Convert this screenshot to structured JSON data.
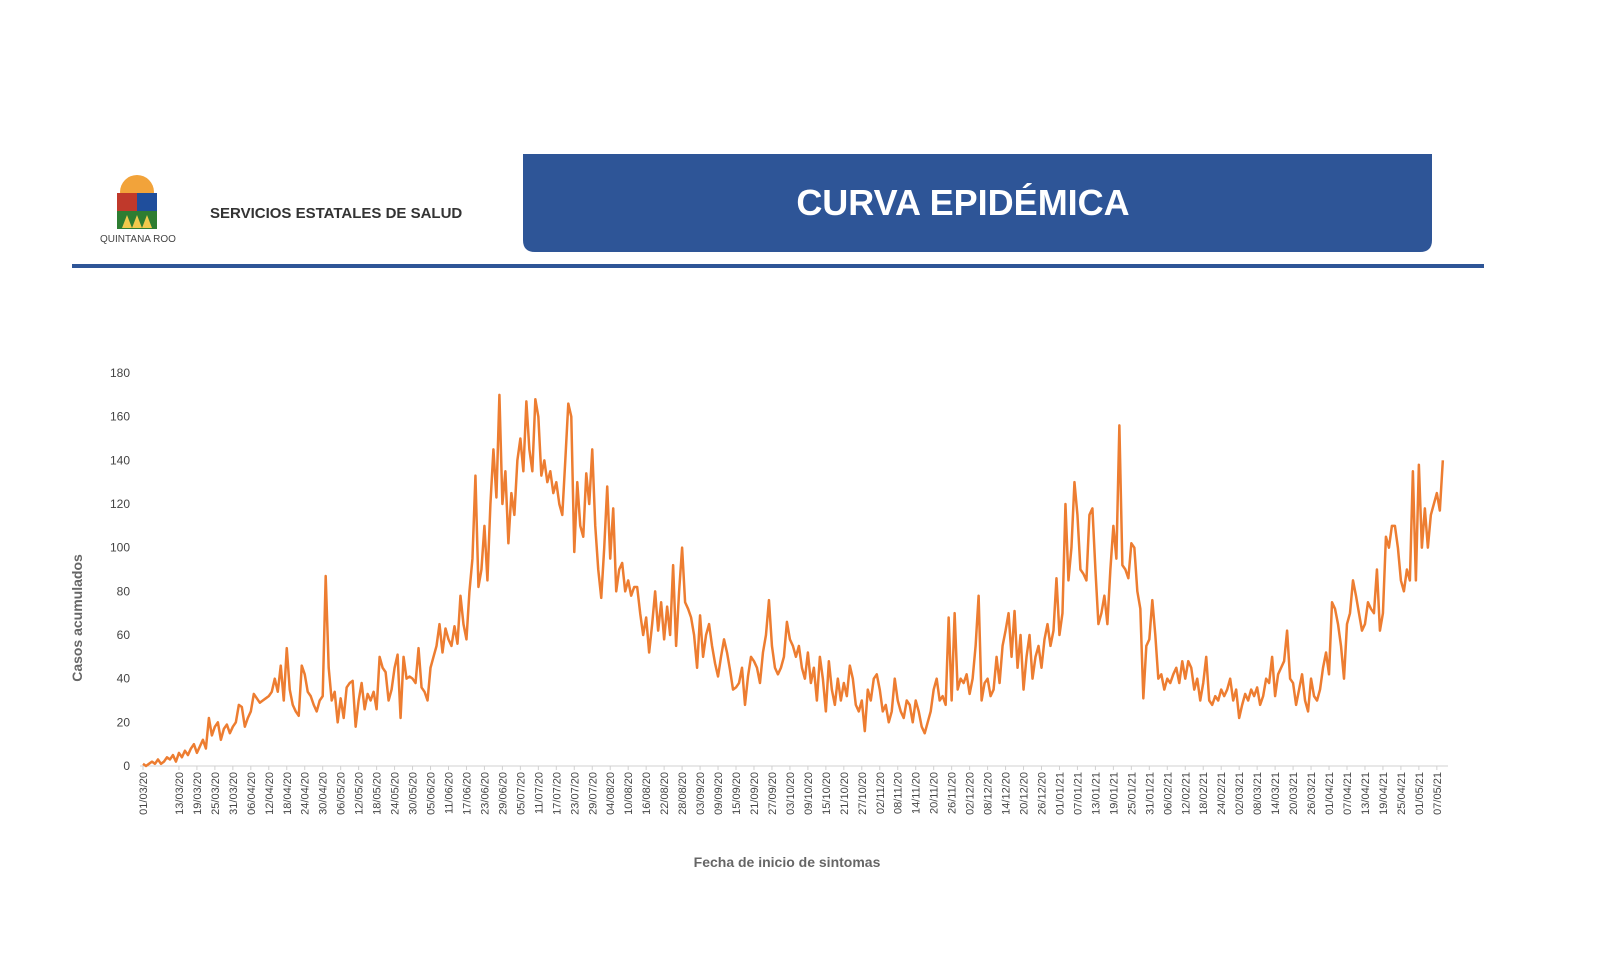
{
  "header": {
    "organization": "SERVICIOS ESTATALES DE SALUD",
    "logo_text": "QUINTANA ROO",
    "banner": "CURVA EPIDÉMICA"
  },
  "chart_data": {
    "type": "line",
    "x_label": "Fecha de inicio de sintomas",
    "y_label": "Casos acumulados",
    "color": "#ed7d31",
    "ylim": [
      0,
      180
    ],
    "yticks": [
      0,
      20,
      40,
      60,
      80,
      100,
      120,
      140,
      160,
      180
    ],
    "categories": [
      "01/03/20",
      null,
      null,
      null,
      null,
      null,
      null,
      null,
      null,
      null,
      null,
      null,
      "13/03/20",
      null,
      null,
      null,
      null,
      null,
      "19/03/20",
      null,
      null,
      null,
      null,
      null,
      "25/03/20",
      null,
      null,
      null,
      null,
      null,
      "31/03/20",
      null,
      null,
      null,
      null,
      null,
      "06/04/20",
      null,
      null,
      null,
      null,
      null,
      "12/04/20",
      null,
      null,
      null,
      null,
      null,
      "18/04/20",
      null,
      null,
      null,
      null,
      null,
      "24/04/20",
      null,
      null,
      null,
      null,
      null,
      "30/04/20",
      null,
      null,
      null,
      null,
      null,
      "06/05/20",
      null,
      null,
      null,
      null,
      null,
      "12/05/20",
      null,
      null,
      null,
      null,
      null,
      "18/05/20",
      null,
      null,
      null,
      null,
      null,
      "24/05/20",
      null,
      null,
      null,
      null,
      null,
      "30/05/20",
      null,
      null,
      null,
      null,
      null,
      "05/06/20",
      null,
      null,
      null,
      null,
      null,
      "11/06/20",
      null,
      null,
      null,
      null,
      null,
      "17/06/20",
      null,
      null,
      null,
      null,
      null,
      "23/06/20",
      null,
      null,
      null,
      null,
      null,
      "29/06/20",
      null,
      null,
      null,
      null,
      null,
      "05/07/20",
      null,
      null,
      null,
      null,
      null,
      "11/07/20",
      null,
      null,
      null,
      null,
      null,
      "17/07/20",
      null,
      null,
      null,
      null,
      null,
      "23/07/20",
      null,
      null,
      null,
      null,
      null,
      "29/07/20",
      null,
      null,
      null,
      null,
      null,
      "04/08/20",
      null,
      null,
      null,
      null,
      null,
      "10/08/20",
      null,
      null,
      null,
      null,
      null,
      "16/08/20",
      null,
      null,
      null,
      null,
      null,
      "22/08/20",
      null,
      null,
      null,
      null,
      null,
      "28/08/20",
      null,
      null,
      null,
      null,
      null,
      "03/09/20",
      null,
      null,
      null,
      null,
      null,
      "09/09/20",
      null,
      null,
      null,
      null,
      null,
      "15/09/20",
      null,
      null,
      null,
      null,
      null,
      "21/09/20",
      null,
      null,
      null,
      null,
      null,
      "27/09/20",
      null,
      null,
      null,
      null,
      null,
      "03/10/20",
      null,
      null,
      null,
      null,
      null,
      "09/10/20",
      null,
      null,
      null,
      null,
      null,
      "15/10/20",
      null,
      null,
      null,
      null,
      null,
      "21/10/20",
      null,
      null,
      null,
      null,
      null,
      "27/10/20",
      null,
      null,
      null,
      null,
      null,
      "02/11/20",
      null,
      null,
      null,
      null,
      null,
      "08/11/20",
      null,
      null,
      null,
      null,
      null,
      "14/11/20",
      null,
      null,
      null,
      null,
      null,
      "20/11/20",
      null,
      null,
      null,
      null,
      null,
      "26/11/20",
      null,
      null,
      null,
      null,
      null,
      "02/12/20",
      null,
      null,
      null,
      null,
      null,
      "08/12/20",
      null,
      null,
      null,
      null,
      null,
      "14/12/20",
      null,
      null,
      null,
      null,
      null,
      "20/12/20",
      null,
      null,
      null,
      null,
      null,
      "26/12/20",
      null,
      null,
      null,
      null,
      null,
      "01/01/21",
      null,
      null,
      null,
      null,
      null,
      "07/01/21",
      null,
      null,
      null,
      null,
      null,
      "13/01/21",
      null,
      null,
      null,
      null,
      null,
      "19/01/21",
      null,
      null,
      null,
      null,
      null,
      "25/01/21",
      null,
      null,
      null,
      null,
      null,
      "31/01/21",
      null,
      null,
      null,
      null,
      null,
      "06/02/21",
      null,
      null,
      null,
      null,
      null,
      "12/02/21",
      null,
      null,
      null,
      null,
      null,
      "18/02/21",
      null,
      null,
      null,
      null,
      null,
      "24/02/21",
      null,
      null,
      null,
      null,
      null,
      "02/03/21",
      null,
      null,
      null,
      null,
      null,
      "08/03/21",
      null,
      null,
      null,
      null,
      null,
      "14/03/21",
      null,
      null,
      null,
      null,
      null,
      "20/03/21",
      null,
      null,
      null,
      null,
      null,
      "26/03/21",
      null,
      null,
      null,
      null,
      null,
      "01/04/21",
      null,
      null,
      null,
      null,
      null,
      "07/04/21",
      null,
      null,
      null,
      null,
      null,
      "13/04/21",
      null,
      null,
      null,
      null,
      null,
      "19/04/21",
      null,
      null,
      null,
      null,
      null,
      "25/04/21",
      null,
      null,
      null,
      null,
      null,
      "01/05/21",
      null,
      null,
      null,
      null,
      null,
      "07/05/21",
      null,
      null
    ],
    "values": [
      1,
      0,
      1,
      2,
      1,
      3,
      1,
      2,
      4,
      3,
      5,
      2,
      6,
      4,
      7,
      5,
      8,
      10,
      6,
      9,
      12,
      8,
      22,
      14,
      18,
      20,
      12,
      17,
      19,
      15,
      18,
      20,
      28,
      27,
      18,
      22,
      25,
      33,
      31,
      29,
      30,
      31,
      32,
      34,
      40,
      34,
      46,
      30,
      54,
      35,
      28,
      25,
      23,
      46,
      42,
      34,
      32,
      28,
      25,
      30,
      32,
      87,
      45,
      30,
      34,
      20,
      31,
      22,
      36,
      38,
      39,
      18,
      30,
      38,
      26,
      33,
      30,
      34,
      26,
      50,
      45,
      43,
      30,
      35,
      45,
      51,
      22,
      50,
      40,
      41,
      40,
      38,
      54,
      36,
      34,
      30,
      45,
      50,
      55,
      65,
      52,
      63,
      58,
      55,
      64,
      56,
      78,
      65,
      58,
      80,
      95,
      133,
      82,
      90,
      110,
      85,
      120,
      145,
      123,
      170,
      120,
      135,
      102,
      125,
      115,
      140,
      150,
      135,
      167,
      145,
      135,
      168,
      160,
      133,
      140,
      130,
      135,
      125,
      130,
      120,
      115,
      140,
      166,
      160,
      98,
      130,
      110,
      105,
      134,
      120,
      145,
      110,
      90,
      77,
      100,
      128,
      95,
      118,
      80,
      90,
      93,
      80,
      85,
      78,
      82,
      82,
      70,
      60,
      68,
      52,
      65,
      80,
      62,
      75,
      58,
      73,
      60,
      92,
      55,
      80,
      100,
      75,
      72,
      68,
      60,
      45,
      69,
      50,
      60,
      65,
      55,
      47,
      41,
      50,
      58,
      52,
      44,
      35,
      36,
      38,
      45,
      28,
      41,
      50,
      48,
      45,
      38,
      52,
      60,
      76,
      55,
      45,
      42,
      45,
      50,
      66,
      58,
      55,
      50,
      55,
      45,
      40,
      52,
      38,
      45,
      30,
      50,
      40,
      25,
      48,
      35,
      28,
      40,
      30,
      38,
      32,
      46,
      40,
      28,
      25,
      30,
      16,
      35,
      30,
      40,
      42,
      35,
      25,
      28,
      20,
      25,
      40,
      30,
      25,
      22,
      30,
      28,
      20,
      30,
      25,
      18,
      15,
      20,
      25,
      35,
      40,
      30,
      32,
      28,
      68,
      30,
      70,
      35,
      40,
      38,
      42,
      33,
      40,
      55,
      78,
      30,
      38,
      40,
      32,
      35,
      50,
      38,
      55,
      62,
      70,
      50,
      71,
      45,
      60,
      35,
      50,
      60,
      40,
      50,
      55,
      45,
      58,
      65,
      55,
      62,
      86,
      60,
      70,
      120,
      85,
      100,
      130,
      115,
      90,
      88,
      85,
      115,
      118,
      90,
      65,
      70,
      78,
      65,
      90,
      110,
      95,
      156,
      92,
      90,
      86,
      102,
      100,
      80,
      72,
      31,
      55,
      58,
      76,
      60,
      40,
      42,
      35,
      40,
      38,
      42,
      45,
      38,
      48,
      40,
      48,
      45,
      35,
      40,
      30,
      38,
      50,
      30,
      28,
      32,
      30,
      35,
      32,
      35,
      40,
      30,
      35,
      22,
      28,
      33,
      30,
      35,
      32,
      36,
      28,
      32,
      40,
      38,
      50,
      32,
      42,
      45,
      48,
      62,
      40,
      38,
      28,
      35,
      42,
      30,
      25,
      40,
      32,
      30,
      35,
      45,
      52,
      42,
      75,
      72,
      65,
      55,
      40,
      65,
      70,
      85,
      78,
      70,
      62,
      65,
      75,
      72,
      70,
      90,
      62,
      70,
      105,
      100,
      110,
      110,
      100,
      85,
      80,
      90,
      85,
      135,
      85,
      138,
      100,
      118,
      100,
      115,
      120,
      125,
      117,
      140
    ]
  }
}
